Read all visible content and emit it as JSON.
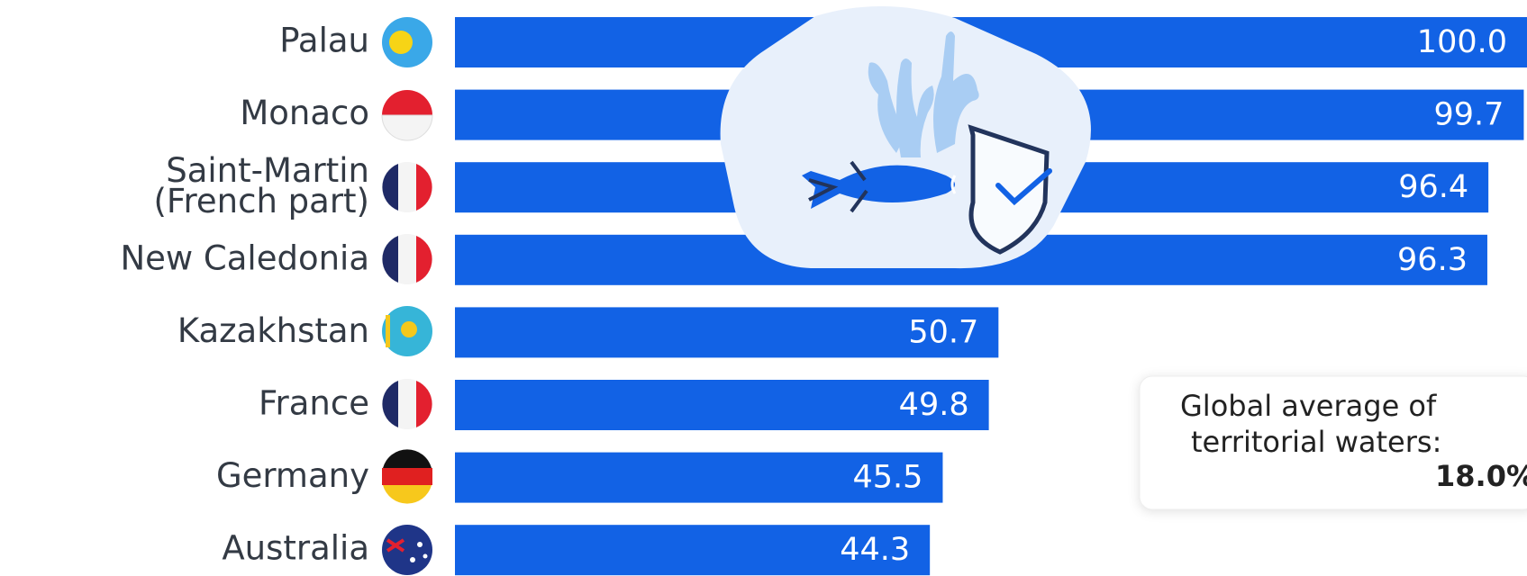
{
  "chart_data": {
    "type": "bar",
    "orientation": "horizontal",
    "categories": [
      "Palau",
      "Monaco",
      "Saint-Martin\n(French part)",
      "New Caledonia",
      "Kazakhstan",
      "France",
      "Germany",
      "Australia"
    ],
    "values": [
      100,
      99.7,
      96.4,
      96.3,
      50.7,
      49.8,
      45.5,
      44.3
    ],
    "value_labels": [
      "100.0",
      "99.7",
      "96.4",
      "96.3",
      "50.7",
      "49.8",
      "45.5",
      "44.3"
    ],
    "color": "#1262e5",
    "xlim": [
      0,
      100
    ],
    "annotation": {
      "lines": [
        "Global average of",
        "territorial waters:"
      ],
      "highlight": "18.0%"
    }
  }
}
